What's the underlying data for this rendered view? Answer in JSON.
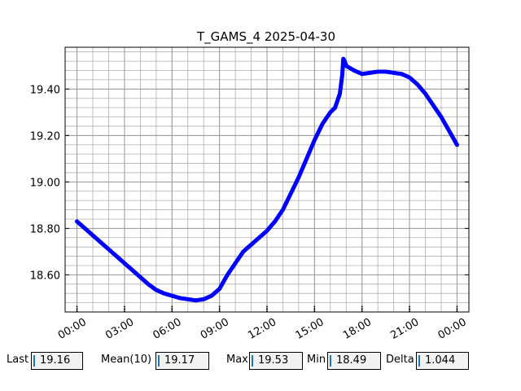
{
  "chart_data": {
    "type": "scatter",
    "title": "T_GAMS_4 2025-04-30",
    "xlabel": "",
    "ylabel": "",
    "x_tick_labels": [
      "00:00",
      "03:00",
      "06:00",
      "09:00",
      "12:00",
      "15:00",
      "18:00",
      "21:00",
      "00:00"
    ],
    "x_tick_hours": [
      0,
      3,
      6,
      9,
      12,
      15,
      18,
      21,
      24
    ],
    "xlim_hours": [
      -0.75,
      24.75
    ],
    "y_tick_labels": [
      "18.60",
      "18.80",
      "19.00",
      "19.20",
      "19.40"
    ],
    "y_ticks": [
      18.6,
      18.8,
      19.0,
      19.2,
      19.4
    ],
    "ylim": [
      18.44,
      19.58
    ],
    "grid": true,
    "marker_color": "#0000ff",
    "series": [
      {
        "points": [
          [
            0.0,
            18.83
          ],
          [
            0.5,
            18.8
          ],
          [
            1.0,
            18.77
          ],
          [
            1.5,
            18.74
          ],
          [
            2.0,
            18.71
          ],
          [
            2.5,
            18.68
          ],
          [
            3.0,
            18.65
          ],
          [
            3.5,
            18.62
          ],
          [
            4.0,
            18.59
          ],
          [
            4.5,
            18.56
          ],
          [
            5.0,
            18.535
          ],
          [
            5.5,
            18.52
          ],
          [
            6.0,
            18.51
          ],
          [
            6.5,
            18.5
          ],
          [
            7.0,
            18.495
          ],
          [
            7.5,
            18.49
          ],
          [
            8.0,
            18.495
          ],
          [
            8.5,
            18.51
          ],
          [
            9.0,
            18.54
          ],
          [
            9.5,
            18.6
          ],
          [
            10.0,
            18.65
          ],
          [
            10.5,
            18.7
          ],
          [
            11.0,
            18.73
          ],
          [
            11.5,
            18.76
          ],
          [
            12.0,
            18.79
          ],
          [
            12.5,
            18.83
          ],
          [
            13.0,
            18.88
          ],
          [
            13.5,
            18.95
          ],
          [
            14.0,
            19.02
          ],
          [
            14.5,
            19.1
          ],
          [
            15.0,
            19.18
          ],
          [
            15.5,
            19.25
          ],
          [
            16.0,
            19.3
          ],
          [
            16.3,
            19.32
          ],
          [
            16.6,
            19.38
          ],
          [
            16.75,
            19.46
          ],
          [
            16.82,
            19.53
          ],
          [
            16.9,
            19.52
          ],
          [
            17.0,
            19.5
          ],
          [
            17.5,
            19.48
          ],
          [
            18.0,
            19.465
          ],
          [
            18.5,
            19.47
          ],
          [
            19.0,
            19.475
          ],
          [
            19.5,
            19.475
          ],
          [
            20.0,
            19.47
          ],
          [
            20.5,
            19.465
          ],
          [
            21.0,
            19.45
          ],
          [
            21.5,
            19.42
          ],
          [
            22.0,
            19.38
          ],
          [
            22.5,
            19.33
          ],
          [
            23.0,
            19.28
          ],
          [
            23.5,
            19.22
          ],
          [
            24.0,
            19.16
          ]
        ]
      }
    ]
  },
  "stats": [
    {
      "label": "Last",
      "value": "19.16"
    },
    {
      "label": "Mean(10)",
      "value": "19.17"
    },
    {
      "label": "Max",
      "value": "19.53"
    },
    {
      "label": "Min",
      "value": "18.49"
    },
    {
      "label": "Delta",
      "value": "1.044"
    }
  ]
}
